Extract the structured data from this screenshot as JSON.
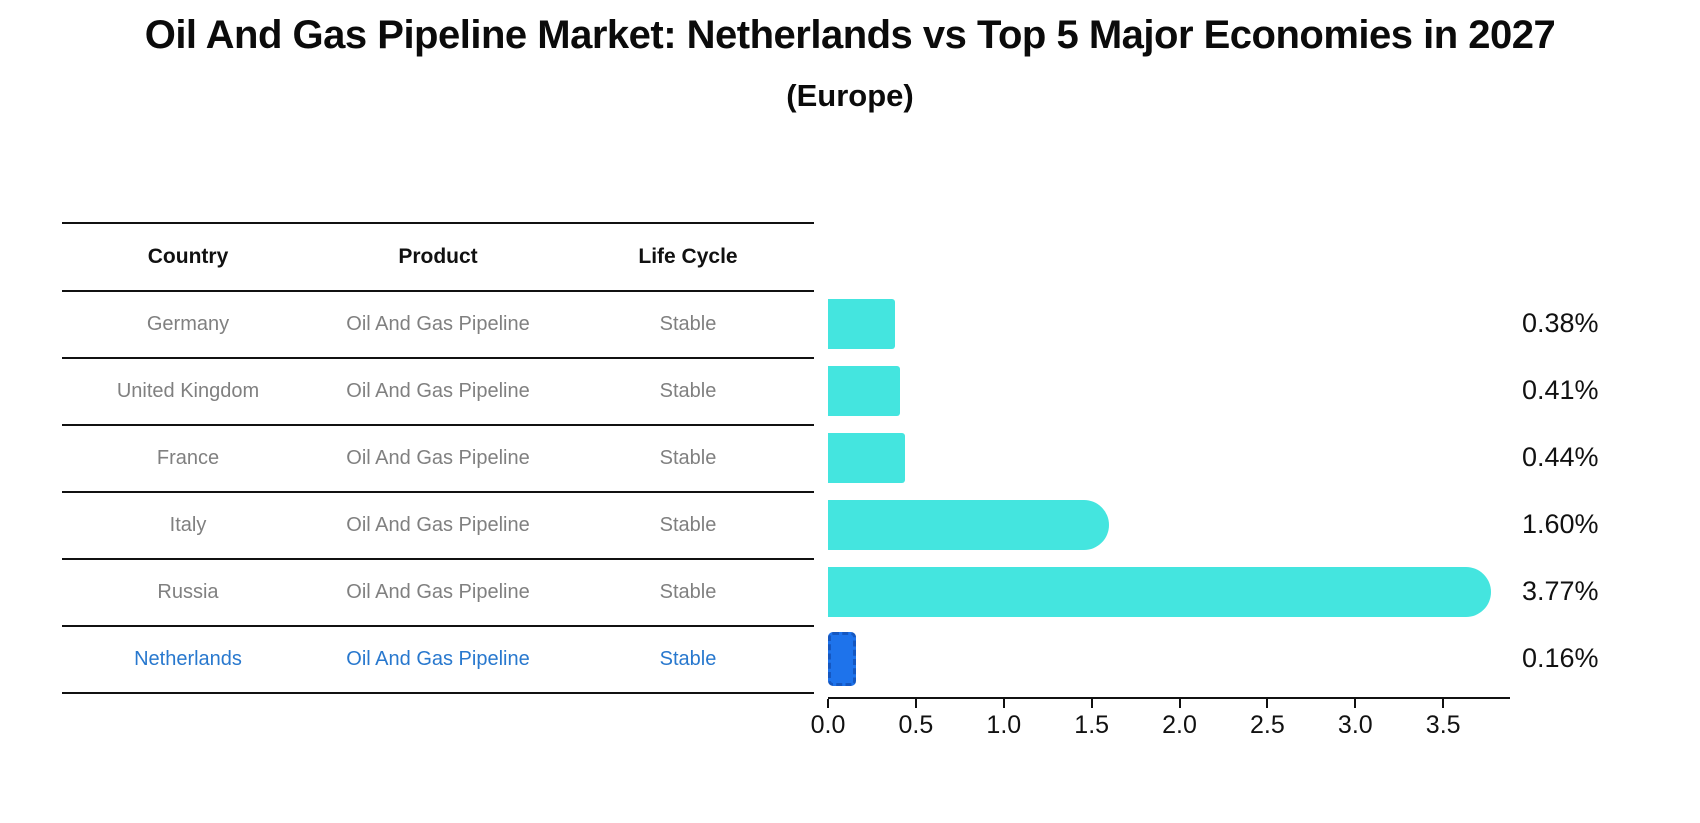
{
  "chart_data": {
    "type": "bar",
    "orientation": "horizontal",
    "title": "Oil And Gas Pipeline Market: Netherlands vs Top 5 Major Economies in 2027",
    "subtitle": "(Europe)",
    "categories": [
      "Germany",
      "United Kingdom",
      "France",
      "Italy",
      "Russia",
      "Netherlands"
    ],
    "values": [
      0.38,
      0.41,
      0.44,
      1.6,
      3.77,
      0.16
    ],
    "value_labels": [
      "0.38%",
      "0.41%",
      "0.44%",
      "1.60%",
      "3.77%",
      "0.16%"
    ],
    "highlight_index": 5,
    "xlim": [
      0,
      3.88
    ],
    "x_ticks": [
      0.0,
      0.5,
      1.0,
      1.5,
      2.0,
      2.5,
      3.0,
      3.5
    ],
    "x_tick_labels": [
      "0.0",
      "0.5",
      "1.0",
      "1.5",
      "2.0",
      "2.5",
      "3.0",
      "3.5"
    ],
    "grid": false,
    "legend": false,
    "colors": {
      "bar": "#44E5DF",
      "highlight_bar_fill": "#1E73EB",
      "highlight_bar_border": "#1557C0",
      "highlight_text": "#2878CE",
      "table_text": "#808080",
      "heading_text": "#111111"
    }
  },
  "table": {
    "columns": [
      "Country",
      "Product",
      "Life Cycle"
    ],
    "rows": [
      {
        "country": "Germany",
        "product": "Oil And Gas Pipeline",
        "life_cycle": "Stable"
      },
      {
        "country": "United Kingdom",
        "product": "Oil And Gas Pipeline",
        "life_cycle": "Stable"
      },
      {
        "country": "France",
        "product": "Oil And Gas Pipeline",
        "life_cycle": "Stable"
      },
      {
        "country": "Italy",
        "product": "Oil And Gas Pipeline",
        "life_cycle": "Stable"
      },
      {
        "country": "Russia",
        "product": "Oil And Gas Pipeline",
        "life_cycle": "Stable"
      },
      {
        "country": "Netherlands",
        "product": "Oil And Gas Pipeline",
        "life_cycle": "Stable"
      }
    ]
  }
}
